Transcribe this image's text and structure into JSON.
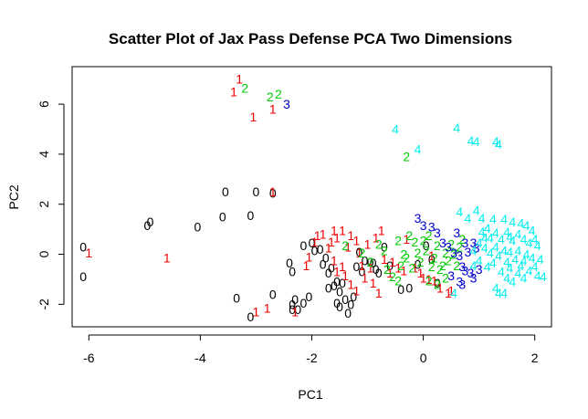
{
  "chart_data": {
    "type": "scatter",
    "title": "Scatter Plot of Jax Pass Defense PCA Two Dimensions",
    "xlabel": "PC1",
    "ylabel": "PC2",
    "xlim": [
      -6.3,
      2.3
    ],
    "ylim": [
      -2.9,
      7.5
    ],
    "xticks": [
      -6,
      -4,
      -2,
      0,
      2
    ],
    "yticks": [
      -2,
      0,
      2,
      4,
      6
    ],
    "xtick_labels": [
      "-6",
      "-4",
      "-2",
      "0",
      "2"
    ],
    "ytick_labels": [
      "-2",
      "0",
      "2",
      "4",
      "6"
    ],
    "marker": "cluster label digit",
    "grid": false,
    "series": [
      {
        "name": "0",
        "label": "0",
        "color": "#000000",
        "points": [
          [
            -6.1,
            0.3
          ],
          [
            -6.1,
            -0.9
          ],
          [
            -4.9,
            1.3
          ],
          [
            -4.95,
            1.15
          ],
          [
            -4.05,
            1.1
          ],
          [
            -3.6,
            1.5
          ],
          [
            -3.55,
            2.5
          ],
          [
            -3.1,
            1.55
          ],
          [
            -3.0,
            2.5
          ],
          [
            -2.7,
            2.45
          ],
          [
            -3.35,
            -1.75
          ],
          [
            -3.1,
            -2.5
          ],
          [
            -2.7,
            -1.6
          ],
          [
            -2.35,
            -2.0
          ],
          [
            -2.3,
            -1.8
          ],
          [
            -2.35,
            -2.2
          ],
          [
            -2.25,
            -2.2
          ],
          [
            -2.15,
            -1.95
          ],
          [
            -2.05,
            -1.7
          ],
          [
            -2.4,
            -0.35
          ],
          [
            -2.35,
            -0.7
          ],
          [
            -2.15,
            0.35
          ],
          [
            -2.0,
            0.45
          ],
          [
            -1.95,
            0.15
          ],
          [
            -1.85,
            0.2
          ],
          [
            -1.8,
            -0.4
          ],
          [
            -1.75,
            -0.15
          ],
          [
            -1.7,
            -0.75
          ],
          [
            -1.65,
            -0.55
          ],
          [
            -1.7,
            -1.35
          ],
          [
            -1.6,
            -1.25
          ],
          [
            -1.55,
            -1.1
          ],
          [
            -1.5,
            -1.5
          ],
          [
            -1.45,
            -1.15
          ],
          [
            -1.55,
            -1.95
          ],
          [
            -1.5,
            -2.1
          ],
          [
            -1.4,
            -1.8
          ],
          [
            -1.35,
            -2.35
          ],
          [
            -1.3,
            -2.0
          ],
          [
            -1.25,
            -1.7
          ],
          [
            -1.2,
            -0.5
          ],
          [
            -1.1,
            -0.7
          ],
          [
            -1.15,
            0.1
          ],
          [
            -1.05,
            -0.25
          ],
          [
            -0.95,
            -0.3
          ],
          [
            -0.9,
            -0.35
          ],
          [
            -0.85,
            -0.6
          ],
          [
            -0.8,
            -0.75
          ],
          [
            -0.7,
            0.3
          ],
          [
            -0.6,
            -0.45
          ],
          [
            -0.4,
            -1.4
          ],
          [
            -0.25,
            -1.35
          ],
          [
            -0.1,
            -0.4
          ],
          [
            0.05,
            0.35
          ],
          [
            0.15,
            -0.2
          ],
          [
            0.25,
            -1.15
          ]
        ]
      },
      {
        "name": "1",
        "label": "1",
        "color": "#ee0000",
        "points": [
          [
            -6.0,
            0.05
          ],
          [
            -4.6,
            -0.15
          ],
          [
            -3.3,
            7.0
          ],
          [
            -3.4,
            6.5
          ],
          [
            -3.05,
            5.5
          ],
          [
            -2.7,
            5.8
          ],
          [
            -2.7,
            2.5
          ],
          [
            -3.0,
            -2.3
          ],
          [
            -2.8,
            -2.15
          ],
          [
            -2.3,
            -2.3
          ],
          [
            -2.1,
            -0.45
          ],
          [
            -2.05,
            -0.1
          ],
          [
            -1.95,
            0.5
          ],
          [
            -1.9,
            0.75
          ],
          [
            -1.8,
            0.8
          ],
          [
            -1.65,
            0.5
          ],
          [
            -1.6,
            0.95
          ],
          [
            -1.55,
            0.65
          ],
          [
            -1.7,
            0.25
          ],
          [
            -1.6,
            -0.25
          ],
          [
            -1.55,
            -0.7
          ],
          [
            -1.45,
            -0.5
          ],
          [
            -1.4,
            -0.85
          ],
          [
            -1.3,
            -1.2
          ],
          [
            -1.2,
            -1.45
          ],
          [
            -1.45,
            0.95
          ],
          [
            -1.35,
            0.3
          ],
          [
            -1.3,
            0.75
          ],
          [
            -1.2,
            0.55
          ],
          [
            -1.15,
            0.05
          ],
          [
            -1.1,
            -0.45
          ],
          [
            -1.05,
            -0.95
          ],
          [
            -1.0,
            0.4
          ],
          [
            -0.95,
            -0.55
          ],
          [
            -0.9,
            -1.15
          ],
          [
            -0.8,
            -1.55
          ],
          [
            -0.85,
            0.65
          ],
          [
            -0.75,
            0.95
          ],
          [
            -0.7,
            -0.2
          ],
          [
            -0.6,
            -0.75
          ],
          [
            -0.55,
            -0.3
          ],
          [
            -0.45,
            -0.55
          ],
          [
            -0.35,
            -0.65
          ],
          [
            -0.3,
            0.6
          ],
          [
            -0.15,
            -0.55
          ],
          [
            -0.05,
            -0.75
          ],
          [
            0.0,
            -0.95
          ],
          [
            0.1,
            -1.0
          ],
          [
            0.2,
            -1.05
          ],
          [
            0.3,
            -1.35
          ],
          [
            0.45,
            -1.55
          ],
          [
            0.5,
            -1.45
          ],
          [
            0.15,
            -0.05
          ]
        ]
      },
      {
        "name": "2",
        "label": "2",
        "color": "#00cc00",
        "points": [
          [
            -3.2,
            6.65
          ],
          [
            -2.75,
            6.3
          ],
          [
            -2.6,
            6.4
          ],
          [
            -0.3,
            3.9
          ],
          [
            -1.4,
            0.35
          ],
          [
            -1.1,
            0.05
          ],
          [
            -0.95,
            -0.3
          ],
          [
            -0.8,
            0.4
          ],
          [
            -0.7,
            0.15
          ],
          [
            -0.65,
            -0.6
          ],
          [
            -0.55,
            -0.9
          ],
          [
            -0.45,
            0.55
          ],
          [
            -0.4,
            -0.45
          ],
          [
            -0.35,
            0.0
          ],
          [
            -0.3,
            -0.15
          ],
          [
            -0.25,
            0.75
          ],
          [
            -0.2,
            -0.55
          ],
          [
            -0.15,
            0.5
          ],
          [
            -0.1,
            0.05
          ],
          [
            -0.05,
            -0.3
          ],
          [
            0.0,
            0.55
          ],
          [
            0.05,
            0.15
          ],
          [
            0.1,
            0.75
          ],
          [
            0.15,
            -0.5
          ],
          [
            0.2,
            -0.15
          ],
          [
            0.25,
            0.35
          ],
          [
            0.3,
            -0.6
          ],
          [
            0.35,
            -0.45
          ],
          [
            0.4,
            0.05
          ],
          [
            0.45,
            -0.25
          ],
          [
            0.5,
            0.4
          ],
          [
            0.55,
            0.0
          ],
          [
            0.6,
            -0.45
          ],
          [
            0.65,
            0.3
          ],
          [
            0.7,
            0.6
          ],
          [
            0.1,
            -1.05
          ],
          [
            0.25,
            -1.2
          ],
          [
            -0.45,
            -1.05
          ],
          [
            0.4,
            -0.95
          ]
        ]
      },
      {
        "name": "3",
        "label": "3",
        "color": "#0000cc",
        "points": [
          [
            -2.45,
            6.0
          ],
          [
            -0.1,
            1.45
          ],
          [
            0.0,
            1.15
          ],
          [
            0.15,
            1.1
          ],
          [
            0.25,
            0.85
          ],
          [
            0.35,
            0.45
          ],
          [
            0.45,
            0.3
          ],
          [
            0.55,
            0.05
          ],
          [
            0.65,
            -0.05
          ],
          [
            0.75,
            0.45
          ],
          [
            0.8,
            0.1
          ],
          [
            0.9,
            0.45
          ],
          [
            0.7,
            -0.5
          ],
          [
            0.75,
            -0.65
          ],
          [
            0.85,
            -0.75
          ],
          [
            0.9,
            -0.95
          ],
          [
            1.0,
            -0.6
          ],
          [
            0.65,
            -1.1
          ],
          [
            0.7,
            -1.2
          ],
          [
            0.5,
            -0.85
          ],
          [
            0.95,
            0.25
          ],
          [
            0.6,
            0.85
          ]
        ]
      },
      {
        "name": "4",
        "label": "4",
        "color": "#00eeee",
        "points": [
          [
            -0.5,
            5.0
          ],
          [
            0.6,
            5.05
          ],
          [
            0.85,
            4.55
          ],
          [
            0.95,
            4.5
          ],
          [
            1.3,
            4.5
          ],
          [
            1.35,
            4.4
          ],
          [
            -0.1,
            4.2
          ],
          [
            0.65,
            1.7
          ],
          [
            0.95,
            1.75
          ],
          [
            1.05,
            1.45
          ],
          [
            1.25,
            1.4
          ],
          [
            1.45,
            1.4
          ],
          [
            1.6,
            1.3
          ],
          [
            1.75,
            1.25
          ],
          [
            1.85,
            1.15
          ],
          [
            1.95,
            0.95
          ],
          [
            1.05,
            0.9
          ],
          [
            1.15,
            1.05
          ],
          [
            1.2,
            0.65
          ],
          [
            1.3,
            0.85
          ],
          [
            1.4,
            0.6
          ],
          [
            1.5,
            0.9
          ],
          [
            1.55,
            0.7
          ],
          [
            1.6,
            0.55
          ],
          [
            1.7,
            0.8
          ],
          [
            1.8,
            0.6
          ],
          [
            1.9,
            0.45
          ],
          [
            2.0,
            0.6
          ],
          [
            1.0,
            0.45
          ],
          [
            1.1,
            0.25
          ],
          [
            1.2,
            0.05
          ],
          [
            1.3,
            0.3
          ],
          [
            1.35,
            -0.05
          ],
          [
            1.45,
            0.15
          ],
          [
            1.5,
            -0.3
          ],
          [
            1.55,
            0.1
          ],
          [
            1.65,
            -0.2
          ],
          [
            1.7,
            0.15
          ],
          [
            1.75,
            -0.45
          ],
          [
            1.8,
            -0.25
          ],
          [
            1.85,
            0.0
          ],
          [
            1.95,
            -0.15
          ],
          [
            2.0,
            -0.5
          ],
          [
            2.05,
            0.35
          ],
          [
            1.4,
            -0.7
          ],
          [
            1.5,
            -0.95
          ],
          [
            1.55,
            -0.55
          ],
          [
            1.6,
            -1.1
          ],
          [
            1.7,
            -0.75
          ],
          [
            1.8,
            -0.95
          ],
          [
            1.9,
            -0.65
          ],
          [
            2.05,
            -0.85
          ],
          [
            2.15,
            -0.9
          ],
          [
            2.1,
            -0.2
          ],
          [
            0.9,
            -0.45
          ],
          [
            1.0,
            -0.25
          ],
          [
            1.15,
            -0.5
          ],
          [
            1.25,
            -0.35
          ],
          [
            1.35,
            -1.55
          ],
          [
            1.45,
            -1.55
          ],
          [
            1.3,
            -1.35
          ],
          [
            1.1,
            0.65
          ],
          [
            0.9,
            0.15
          ],
          [
            0.8,
            1.45
          ],
          [
            0.55,
            -1.55
          ]
        ]
      }
    ]
  }
}
